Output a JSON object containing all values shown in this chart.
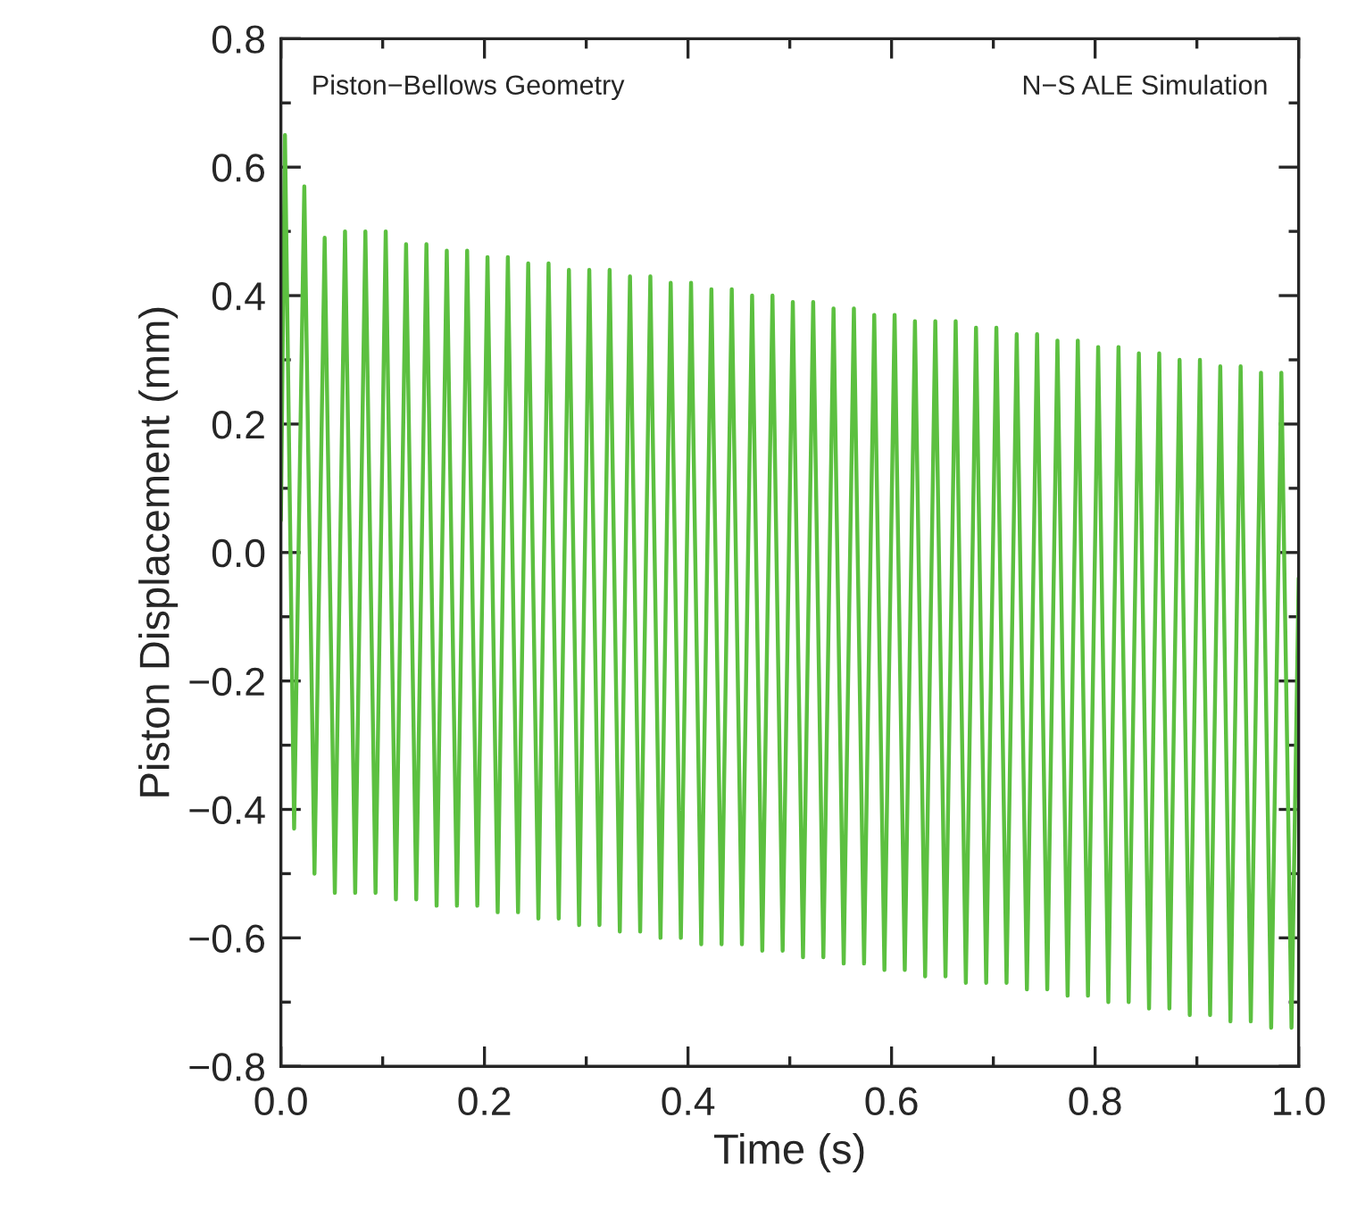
{
  "chart_data": {
    "type": "line",
    "xlabel": "Time (s)",
    "ylabel": "Piston Displacement (mm)",
    "annotations": [
      "Piston−Bellows Geometry",
      "N−S ALE Simulation"
    ],
    "xlim": [
      0,
      1
    ],
    "ylim": [
      -0.8,
      0.8
    ],
    "xticks": [
      {
        "value": 0,
        "label": "0.0"
      },
      {
        "value": 0.1,
        "label": null
      },
      {
        "value": 0.2,
        "label": "0.2"
      },
      {
        "value": 0.3,
        "label": null
      },
      {
        "value": 0.4,
        "label": "0.4"
      },
      {
        "value": 0.5,
        "label": null
      },
      {
        "value": 0.6,
        "label": "0.6"
      },
      {
        "value": 0.7,
        "label": null
      },
      {
        "value": 0.8,
        "label": "0.8"
      },
      {
        "value": 0.9,
        "label": null
      },
      {
        "value": 1,
        "label": "1.0"
      }
    ],
    "yticks": [
      {
        "value": -0.8,
        "label": "−0.8"
      },
      {
        "value": -0.7,
        "label": null
      },
      {
        "value": -0.6,
        "label": "−0.6"
      },
      {
        "value": -0.5,
        "label": null
      },
      {
        "value": -0.4,
        "label": "−0.4"
      },
      {
        "value": -0.3,
        "label": null
      },
      {
        "value": -0.2,
        "label": "−0.2"
      },
      {
        "value": -0.1,
        "label": null
      },
      {
        "value": 0,
        "label": "0.0"
      },
      {
        "value": 0.1,
        "label": null
      },
      {
        "value": 0.2,
        "label": "0.2"
      },
      {
        "value": 0.3,
        "label": null
      },
      {
        "value": 0.4,
        "label": "0.4"
      },
      {
        "value": 0.5,
        "label": null
      },
      {
        "value": 0.6,
        "label": "0.6"
      },
      {
        "value": 0.7,
        "label": null
      },
      {
        "value": 0.8,
        "label": "0.8"
      }
    ],
    "grid": false,
    "legend": false,
    "marker": "none",
    "line_style": "solid",
    "series": [
      {
        "color": "#5cc040",
        "x": [
          0,
          0.004,
          0.013,
          0.023,
          0.033,
          0.043,
          0.053,
          0.063,
          0.073,
          0.083,
          0.093,
          0.103,
          0.113,
          0.123,
          0.133,
          0.143,
          0.153,
          0.163,
          0.173,
          0.183,
          0.193,
          0.203,
          0.213,
          0.223,
          0.233,
          0.243,
          0.253,
          0.263,
          0.273,
          0.283,
          0.293,
          0.303,
          0.313,
          0.323,
          0.333,
          0.343,
          0.353,
          0.363,
          0.373,
          0.383,
          0.393,
          0.403,
          0.413,
          0.423,
          0.433,
          0.443,
          0.453,
          0.463,
          0.473,
          0.483,
          0.493,
          0.503,
          0.513,
          0.523,
          0.533,
          0.543,
          0.553,
          0.563,
          0.573,
          0.583,
          0.593,
          0.603,
          0.613,
          0.623,
          0.633,
          0.643,
          0.653,
          0.663,
          0.673,
          0.683,
          0.693,
          0.703,
          0.713,
          0.723,
          0.733,
          0.743,
          0.753,
          0.763,
          0.773,
          0.783,
          0.793,
          0.803,
          0.813,
          0.823,
          0.833,
          0.843,
          0.853,
          0.863,
          0.873,
          0.883,
          0.893,
          0.903,
          0.913,
          0.923,
          0.933,
          0.943,
          0.953,
          0.963,
          0.973,
          0.983,
          0.993,
          1.0
        ],
        "values": [
          0.05,
          0.65,
          -0.43,
          0.57,
          -0.5,
          0.49,
          -0.53,
          0.5,
          -0.53,
          0.5,
          -0.53,
          0.5,
          -0.54,
          0.48,
          -0.54,
          0.48,
          -0.55,
          0.47,
          -0.55,
          0.47,
          -0.55,
          0.46,
          -0.56,
          0.46,
          -0.56,
          0.45,
          -0.57,
          0.45,
          -0.57,
          0.44,
          -0.58,
          0.44,
          -0.58,
          0.44,
          -0.59,
          0.43,
          -0.59,
          0.43,
          -0.6,
          0.42,
          -0.6,
          0.42,
          -0.61,
          0.41,
          -0.61,
          0.41,
          -0.61,
          0.4,
          -0.62,
          0.4,
          -0.62,
          0.39,
          -0.63,
          0.39,
          -0.63,
          0.38,
          -0.64,
          0.38,
          -0.64,
          0.37,
          -0.65,
          0.37,
          -0.65,
          0.36,
          -0.66,
          0.36,
          -0.66,
          0.36,
          -0.67,
          0.35,
          -0.67,
          0.35,
          -0.67,
          0.34,
          -0.68,
          0.34,
          -0.68,
          0.33,
          -0.69,
          0.33,
          -0.69,
          0.32,
          -0.7,
          0.32,
          -0.7,
          0.31,
          -0.71,
          0.31,
          -0.71,
          0.3,
          -0.72,
          0.3,
          -0.72,
          0.29,
          -0.73,
          0.29,
          -0.73,
          0.28,
          -0.74,
          0.28,
          -0.74,
          -0.04
        ]
      }
    ]
  }
}
